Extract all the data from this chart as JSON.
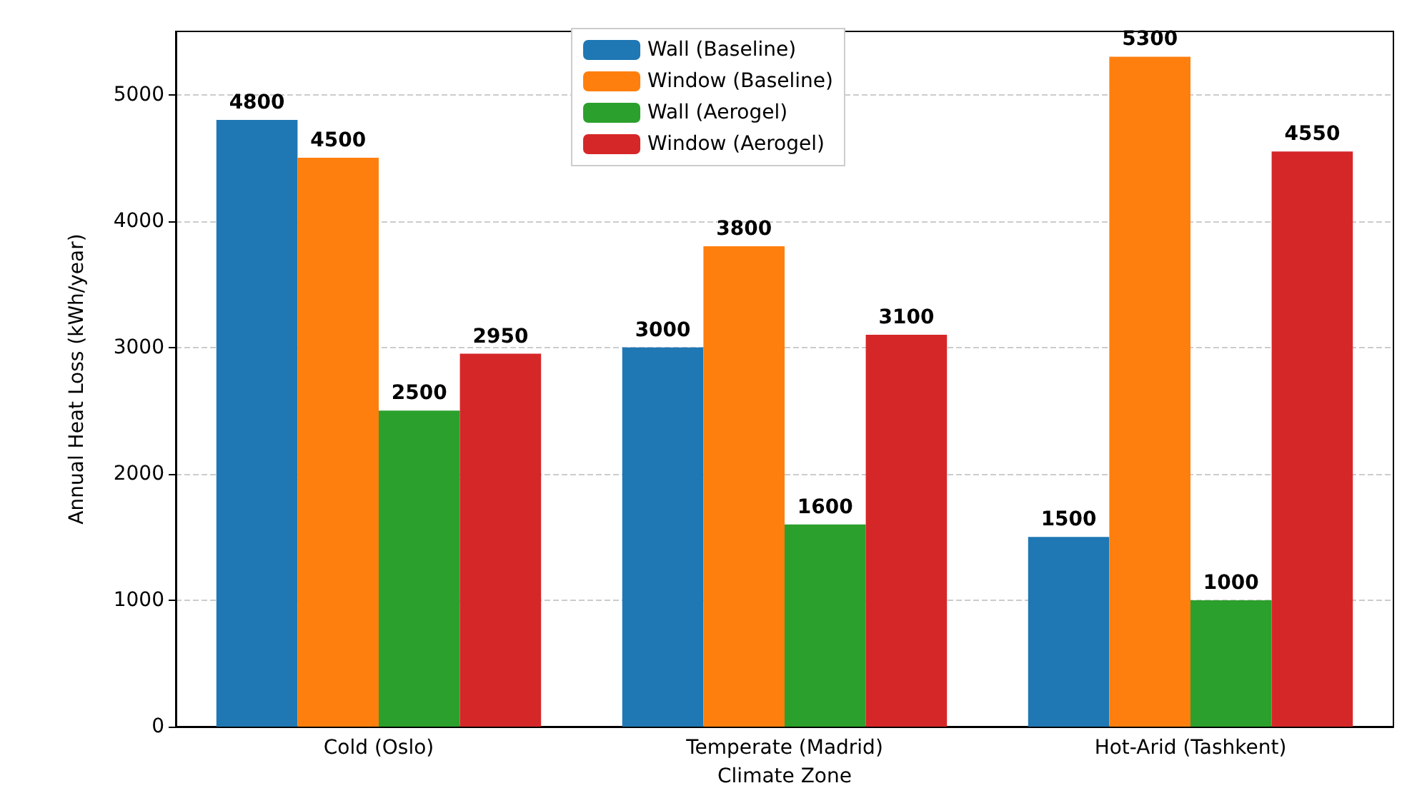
{
  "chart_data": {
    "type": "bar",
    "xlabel": "Climate Zone",
    "ylabel": "Annual Heat Loss (kWh/year)",
    "categories": [
      "Cold (Oslo)",
      "Temperate (Madrid)",
      "Hot-Arid (Tashkent)"
    ],
    "series": [
      {
        "name": "Wall (Baseline)",
        "color": "#1f77b4",
        "values": [
          4800,
          3000,
          1500
        ]
      },
      {
        "name": "Window (Baseline)",
        "color": "#ff7f0e",
        "values": [
          4500,
          3800,
          5300
        ]
      },
      {
        "name": "Wall (Aerogel)",
        "color": "#2ca02c",
        "values": [
          2500,
          1600,
          1000
        ]
      },
      {
        "name": "Window (Aerogel)",
        "color": "#d62728",
        "values": [
          2950,
          3100,
          4550
        ]
      }
    ],
    "ylim": [
      0,
      5500
    ],
    "yticks": [
      0,
      1000,
      2000,
      3000,
      4000,
      5000
    ],
    "grid": "y",
    "legend": "top",
    "data_labels": true
  }
}
